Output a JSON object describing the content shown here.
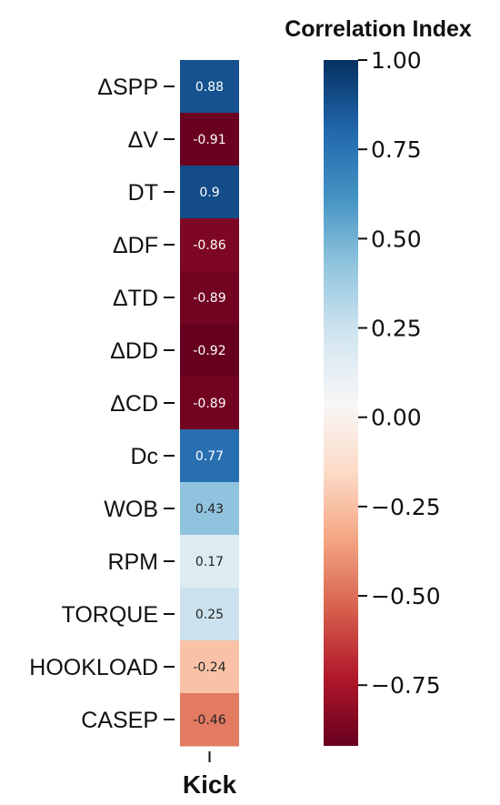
{
  "chart_data": {
    "type": "heatmap",
    "rows": [
      "ΔSPP",
      "ΔV",
      "DT",
      "ΔDF",
      "ΔTD",
      "ΔDD",
      "ΔCD",
      "Dc",
      "WOB",
      "RPM",
      "TORQUE",
      "HOOKLOAD",
      "CASEP"
    ],
    "columns": [
      "Kick"
    ],
    "values": [
      0.88,
      -0.91,
      0.9,
      -0.86,
      -0.89,
      -0.92,
      -0.89,
      0.77,
      0.43,
      0.17,
      0.25,
      -0.24,
      -0.46
    ],
    "value_labels": [
      "0.88",
      "-0.91",
      "0.9",
      "-0.86",
      "-0.89",
      "-0.92",
      "-0.89",
      "0.77",
      "0.43",
      "0.17",
      "0.25",
      "-0.24",
      "-0.46"
    ],
    "colorbar": {
      "title": "Correlation Index",
      "colormap": "RdBu",
      "range": [
        -0.92,
        1.0
      ],
      "ticks": [
        1.0,
        0.75,
        0.5,
        0.25,
        0.0,
        -0.25,
        -0.5,
        -0.75
      ],
      "tick_labels": [
        "1.00",
        "0.75",
        "0.50",
        "0.25",
        "0.00",
        "−0.25",
        "−0.50",
        "−0.75"
      ]
    }
  }
}
